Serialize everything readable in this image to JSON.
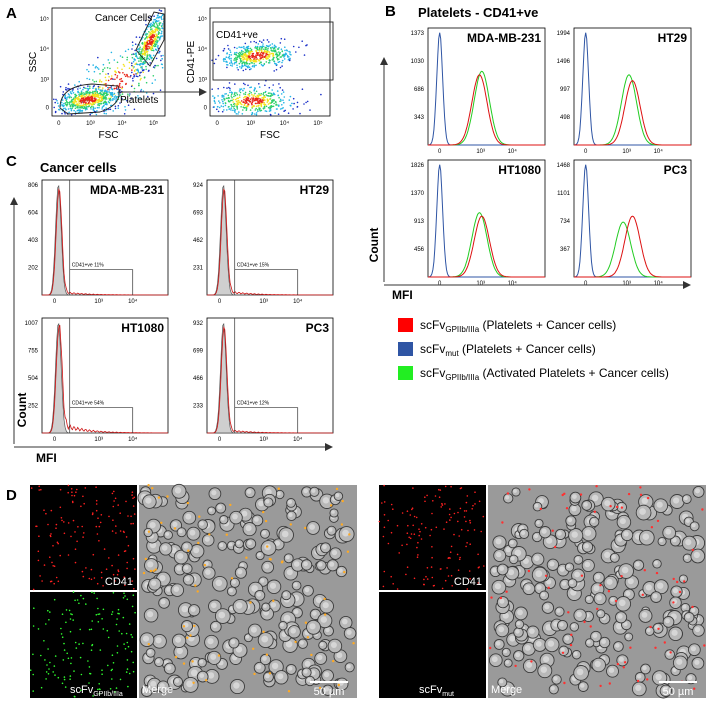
{
  "A": {
    "label": "A",
    "left": {
      "cancer_label": "Cancer Cells",
      "platelet_label": "Platelets",
      "x_label": "FSC",
      "y_label": "SSC",
      "xticks": [
        "0",
        "10³",
        "10⁴",
        "10⁵"
      ],
      "yticks": [
        "10⁵",
        "10⁴",
        "10³",
        "0"
      ]
    },
    "right": {
      "gate_label": "CD41+ve",
      "x_label": "FSC",
      "y_label": "CD41-PE",
      "xticks": [
        "0",
        "10³",
        "10⁴",
        "10⁵"
      ],
      "yticks": [
        "10⁵",
        "10⁴",
        "10³",
        "0"
      ]
    }
  },
  "B": {
    "label": "B",
    "title": "Platelets - CD41+ve",
    "x_label": "MFI",
    "y_label": "Count",
    "xticks": [
      "0",
      "10³",
      "10⁴"
    ],
    "plots": [
      {
        "name": "MDA-MB-231",
        "yticks": [
          1373,
          1030,
          686,
          343
        ]
      },
      {
        "name": "HT29",
        "yticks": [
          1994,
          1496,
          997,
          498
        ]
      },
      {
        "name": "HT1080",
        "yticks": [
          1826,
          1370,
          913,
          456
        ]
      },
      {
        "name": "PC3",
        "yticks": [
          1468,
          1101,
          734,
          367
        ]
      }
    ]
  },
  "legend": [
    {
      "color": "#ff0000",
      "main": "scFv",
      "sub": "GPIIb/IIIa",
      "note": " (Platelets + Cancer cells)"
    },
    {
      "color": "#2f55a4",
      "main": "scFv",
      "sub": "mut",
      "note": " (Platelets + Cancer cells)"
    },
    {
      "color": "#22ee22",
      "main": "scFv",
      "sub": "GPIIb/IIIa",
      "note": " (Activated Platelets + Cancer cells)"
    }
  ],
  "C": {
    "label": "C",
    "title": "Cancer cells",
    "x_label": "MFI",
    "y_label": "Count",
    "xticks": [
      "0",
      "10³",
      "10⁴"
    ],
    "plots": [
      {
        "name": "MDA-MB-231",
        "yticks": [
          806,
          604,
          403,
          202
        ],
        "gate": "CD41+ve 11%"
      },
      {
        "name": "HT29",
        "yticks": [
          924,
          693,
          462,
          231
        ],
        "gate": "CD41+ve 15%"
      },
      {
        "name": "HT1080",
        "yticks": [
          1007,
          755,
          504,
          252
        ],
        "gate": "CD41+ve 54%"
      },
      {
        "name": "PC3",
        "yticks": [
          932,
          699,
          466,
          233
        ],
        "gate": "CD41+ve 12%"
      }
    ]
  },
  "D": {
    "label": "D",
    "left": {
      "top": "CD41",
      "bottom_main": "scFv",
      "bottom_sub": "GPIIb/IIIa",
      "merge": "Merge",
      "scale": "50 µm"
    },
    "right": {
      "top": "CD41",
      "bottom_main": "scFv",
      "bottom_sub": "mut",
      "merge": "Merge",
      "scale": "50 µm"
    }
  }
}
